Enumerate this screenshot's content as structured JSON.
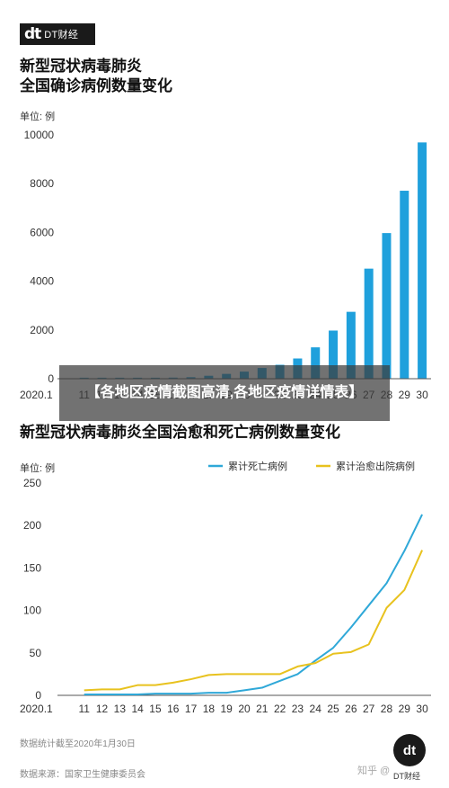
{
  "logo": {
    "mark": "dt",
    "name": "DT财经"
  },
  "overlay_text": "【各地区疫情截图高清,各地区疫情详情表】",
  "footnote_date": "数据统计截至2020年1月30日",
  "footnote_source": "数据来源：国家卫生健康委员会",
  "brand_badge": {
    "mark": "dt",
    "label": "DT财经"
  },
  "zhihu_watermark": "知乎 @",
  "colors": {
    "bar": "#1fa0dc",
    "deaths": "#2fa8d8",
    "cured": "#e8c21e",
    "axis": "#555555"
  },
  "chart_data": [
    {
      "type": "bar",
      "title_lines": [
        "新型冠状病毒肺炎",
        "全国确诊病例数量变化"
      ],
      "unit_label": "单位: 例",
      "categories": [
        "2020.1",
        "11",
        "12",
        "13",
        "14",
        "15",
        "16",
        "17",
        "18",
        "19",
        "20",
        "21",
        "22",
        "23",
        "24",
        "25",
        "26",
        "27",
        "28",
        "29",
        "30"
      ],
      "values": [
        0,
        41,
        41,
        41,
        41,
        41,
        45,
        62,
        121,
        198,
        291,
        440,
        571,
        830,
        1287,
        1975,
        2744,
        4515,
        5974,
        7711,
        9692
      ],
      "yticks": [
        0,
        2000,
        4000,
        6000,
        8000,
        10000
      ],
      "ylim": [
        0,
        10000
      ],
      "grid": false
    },
    {
      "type": "line",
      "title": "新型冠状病毒肺炎全国治愈和死亡病例数量变化",
      "unit_label": "单位: 例",
      "categories": [
        "2020.1",
        "11",
        "12",
        "13",
        "14",
        "15",
        "16",
        "17",
        "18",
        "19",
        "20",
        "21",
        "22",
        "23",
        "24",
        "25",
        "26",
        "27",
        "28",
        "29",
        "30"
      ],
      "series": [
        {
          "name": "累计死亡病例",
          "values": [
            0,
            1,
            1,
            1,
            1,
            2,
            2,
            2,
            3,
            3,
            6,
            9,
            17,
            25,
            41,
            56,
            80,
            106,
            132,
            170,
            213
          ]
        },
        {
          "name": "累计治愈出院病例",
          "values": [
            0,
            6,
            7,
            7,
            12,
            12,
            15,
            19,
            24,
            25,
            25,
            25,
            25,
            34,
            38,
            49,
            51,
            60,
            103,
            124,
            171
          ]
        }
      ],
      "yticks": [
        0,
        50,
        100,
        150,
        200,
        250
      ],
      "ylim": [
        0,
        250
      ],
      "legend_position": "top-right",
      "grid": false
    }
  ]
}
